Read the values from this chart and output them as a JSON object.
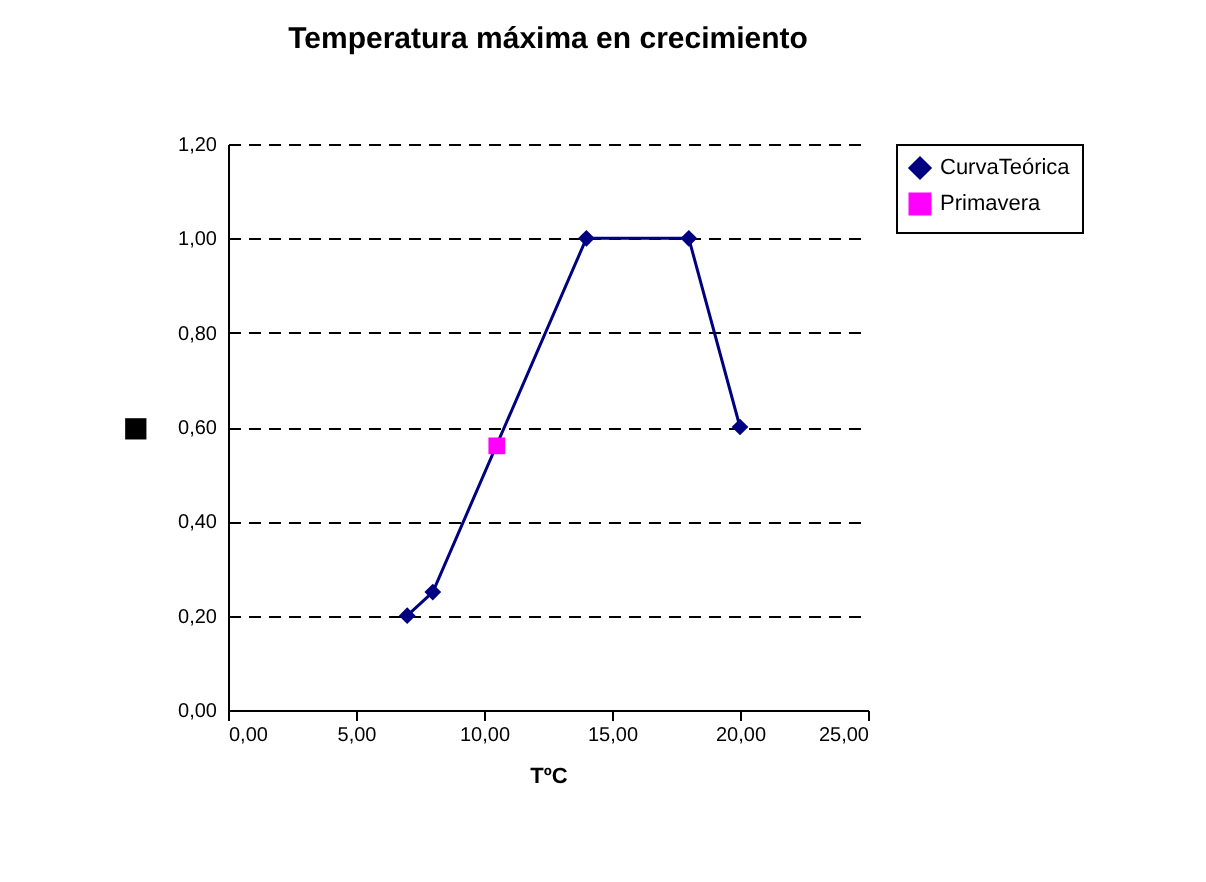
{
  "chart_data": {
    "type": "line",
    "title": "Temperatura máxima en crecimiento",
    "xlabel": "TºC",
    "ylabel": "■",
    "series": [
      {
        "name": "CurvaTeórica",
        "color": "#000080",
        "marker": "diamond",
        "x": [
          7,
          8,
          14,
          18,
          20
        ],
        "values": [
          0.2,
          0.25,
          1.0,
          1.0,
          0.6
        ]
      },
      {
        "name": "Primavera",
        "color": "#ff00ff",
        "type": "scatter",
        "marker": "square",
        "x": [
          10.5
        ],
        "values": [
          0.56
        ]
      }
    ],
    "xlim": [
      0,
      25
    ],
    "xticks": [
      {
        "value": 0,
        "label": "0,00"
      },
      {
        "value": 5,
        "label": "5,00"
      },
      {
        "value": 10,
        "label": "10,00"
      },
      {
        "value": 15,
        "label": "15,00"
      },
      {
        "value": 20,
        "label": "20,00"
      },
      {
        "value": 25,
        "label": "25,00"
      }
    ],
    "ylim": [
      0,
      1.2
    ],
    "yticks": [
      {
        "value": 0,
        "label": "0,00"
      },
      {
        "value": 0.2,
        "label": "0,20"
      },
      {
        "value": 0.4,
        "label": "0,40"
      },
      {
        "value": 0.6,
        "label": "0,60"
      },
      {
        "value": 0.8,
        "label": "0,80"
      },
      {
        "value": 1.0,
        "label": "1,00"
      },
      {
        "value": 1.2,
        "label": "1,20"
      }
    ],
    "grid": "y",
    "line_style": "solid",
    "legend": "right"
  }
}
